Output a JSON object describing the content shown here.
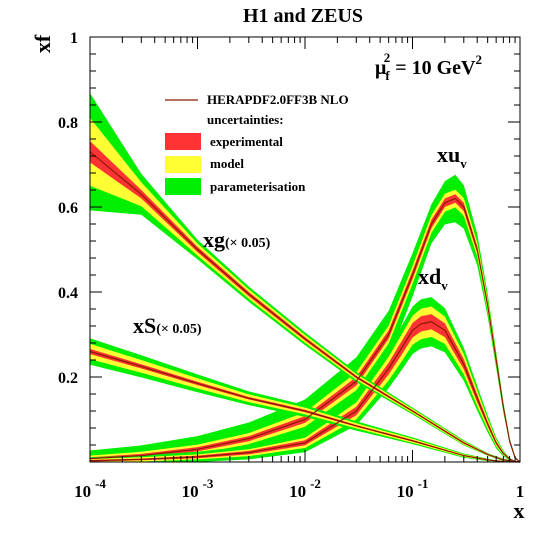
{
  "chart_data": {
    "type": "area",
    "title": "H1 and ZEUS",
    "xlabel": "x",
    "ylabel": "xf",
    "x_scale": "log",
    "xlim": [
      0.0001,
      1
    ],
    "ylim": [
      0,
      1
    ],
    "x_ticks": [
      {
        "value": 0.0001,
        "base": "10",
        "exp": "-4"
      },
      {
        "value": 0.001,
        "base": "10",
        "exp": "-3"
      },
      {
        "value": 0.01,
        "base": "10",
        "exp": "-2"
      },
      {
        "value": 0.1,
        "base": "10",
        "exp": "-1"
      },
      {
        "value": 1,
        "base": "1",
        "exp": ""
      }
    ],
    "y_ticks": [
      0.2,
      0.4,
      0.6,
      0.8,
      1
    ],
    "y_tick_labels": [
      "0.2",
      "0.4",
      "0.6",
      "0.8",
      "1"
    ],
    "grid": false,
    "scale_label": {
      "mu": "μ",
      "sub": "f",
      "sup": "2",
      "rest": " = 10 GeV",
      "sup2": "2"
    },
    "legend": {
      "position": "top-center",
      "line_label": "HERAPDF2.0FF3B NLO",
      "header": "uncertainties:",
      "bands": [
        {
          "label": "experimental",
          "color": "#ff3333"
        },
        {
          "label": "model",
          "color": "#ffff33"
        },
        {
          "label": "parameterisation",
          "color": "#00ee00"
        }
      ]
    },
    "colors": {
      "central": "#8b1a00",
      "experimental": "#ff3333",
      "model": "#ffff33",
      "parameterisation": "#00ee00"
    },
    "series": [
      {
        "key": "xuv",
        "label_main": "xu",
        "label_sub": "v",
        "label_scale": "",
        "x": [
          0.0001,
          0.0003,
          0.001,
          0.003,
          0.01,
          0.03,
          0.06,
          0.1,
          0.15,
          0.2,
          0.25,
          0.3,
          0.4,
          0.5,
          0.6,
          0.7,
          0.8,
          0.9,
          1
        ],
        "values": [
          0.008,
          0.015,
          0.03,
          0.055,
          0.1,
          0.19,
          0.3,
          0.44,
          0.56,
          0.61,
          0.62,
          0.6,
          0.5,
          0.37,
          0.24,
          0.13,
          0.05,
          0.01,
          0
        ],
        "exp": [
          0.003,
          0.004,
          0.005,
          0.006,
          0.008,
          0.01,
          0.01,
          0.01,
          0.01,
          0.01,
          0.01,
          0.01,
          0.008,
          0.007,
          0.005,
          0.004,
          0.002,
          0.001,
          0
        ],
        "model": [
          0.004,
          0.005,
          0.006,
          0.007,
          0.009,
          0.011,
          0.011,
          0.011,
          0.011,
          0.011,
          0.011,
          0.011,
          0.009,
          0.008,
          0.006,
          0.004,
          0.002,
          0.001,
          0
        ],
        "param": [
          0.012,
          0.015,
          0.02,
          0.025,
          0.03,
          0.035,
          0.035,
          0.03,
          0.025,
          0.03,
          0.035,
          0.03,
          0.02,
          0.012,
          0.008,
          0.005,
          0.002,
          0.001,
          0
        ]
      },
      {
        "key": "xdv",
        "label_main": "xd",
        "label_sub": "v",
        "label_scale": "",
        "x": [
          0.0001,
          0.0003,
          0.001,
          0.003,
          0.01,
          0.03,
          0.06,
          0.08,
          0.1,
          0.12,
          0.15,
          0.2,
          0.3,
          0.4,
          0.5,
          0.6,
          0.7,
          0.8,
          0.9,
          1
        ],
        "values": [
          0.003,
          0.006,
          0.012,
          0.022,
          0.045,
          0.12,
          0.22,
          0.27,
          0.31,
          0.325,
          0.33,
          0.31,
          0.23,
          0.15,
          0.09,
          0.045,
          0.02,
          0.007,
          0.001,
          0
        ],
        "exp": [
          0.002,
          0.002,
          0.003,
          0.004,
          0.006,
          0.01,
          0.014,
          0.016,
          0.017,
          0.018,
          0.018,
          0.016,
          0.012,
          0.009,
          0.006,
          0.004,
          0.002,
          0.001,
          0,
          0
        ],
        "model": [
          0.002,
          0.003,
          0.003,
          0.004,
          0.006,
          0.01,
          0.014,
          0.016,
          0.017,
          0.018,
          0.018,
          0.016,
          0.012,
          0.009,
          0.006,
          0.004,
          0.002,
          0.001,
          0,
          0
        ],
        "param": [
          0.004,
          0.005,
          0.006,
          0.008,
          0.01,
          0.014,
          0.018,
          0.02,
          0.022,
          0.022,
          0.022,
          0.02,
          0.015,
          0.011,
          0.008,
          0.005,
          0.003,
          0.001,
          0,
          0
        ]
      },
      {
        "key": "xg",
        "label_main": "xg",
        "label_sub": "",
        "label_scale": "(× 0.05)",
        "x": [
          0.0001,
          0.0003,
          0.001,
          0.003,
          0.01,
          0.03,
          0.1,
          0.3,
          0.5,
          0.7,
          1
        ],
        "values": [
          0.73,
          0.63,
          0.5,
          0.395,
          0.29,
          0.2,
          0.12,
          0.045,
          0.018,
          0.005,
          0
        ],
        "exp": [
          0.025,
          0.01,
          0.006,
          0.005,
          0.004,
          0.003,
          0.002,
          0.002,
          0.001,
          0.001,
          0
        ],
        "model": [
          0.055,
          0.018,
          0.008,
          0.006,
          0.005,
          0.004,
          0.003,
          0.002,
          0.001,
          0.001,
          0
        ],
        "param": [
          0.058,
          0.02,
          0.009,
          0.007,
          0.006,
          0.005,
          0.003,
          0.002,
          0.001,
          0.001,
          0
        ]
      },
      {
        "key": "xS",
        "label_main": "xS",
        "label_sub": "",
        "label_scale": "(× 0.05)",
        "x": [
          0.0001,
          0.0003,
          0.001,
          0.003,
          0.01,
          0.03,
          0.1,
          0.3,
          0.5,
          0.7,
          1
        ],
        "values": [
          0.26,
          0.225,
          0.185,
          0.15,
          0.12,
          0.085,
          0.05,
          0.015,
          0.005,
          0.001,
          0
        ],
        "exp": [
          0.006,
          0.005,
          0.004,
          0.003,
          0.003,
          0.002,
          0.002,
          0.001,
          0.001,
          0,
          0
        ],
        "model": [
          0.012,
          0.01,
          0.008,
          0.006,
          0.005,
          0.004,
          0.003,
          0.002,
          0.001,
          0,
          0
        ],
        "param": [
          0.013,
          0.011,
          0.009,
          0.007,
          0.006,
          0.005,
          0.003,
          0.002,
          0.001,
          0,
          0
        ]
      }
    ]
  }
}
